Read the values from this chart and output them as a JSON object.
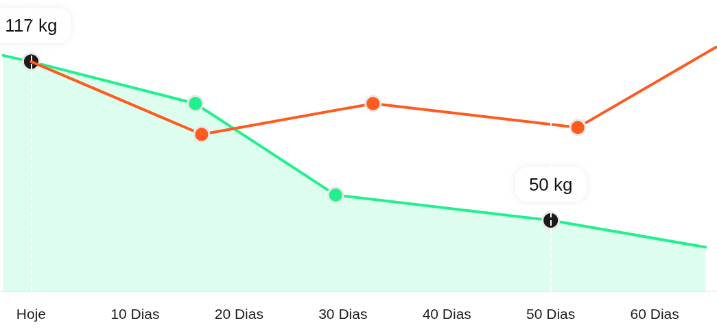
{
  "chart_data": {
    "type": "area",
    "series": [
      {
        "color": "#22f08e",
        "x": [
          -2.7,
          0,
          15.8,
          29.3,
          50,
          64.9
        ],
        "values": [
          119.6,
          117,
          99.3,
          60.7,
          50,
          38.7
        ],
        "value_labels": [
          null,
          "117 kg",
          null,
          null,
          "50 kg",
          null
        ]
      },
      {
        "type": "line",
        "color": "#ff5a1f",
        "x": [
          0,
          16.4,
          32.9,
          52.6,
          65.9
        ],
        "values": [
          117,
          86.3,
          99.3,
          89.2,
          123.1
        ]
      }
    ],
    "xlim": [
      -3,
      66
    ],
    "xticks": [
      {
        "value": 0,
        "label": "Hoje"
      },
      {
        "value": 10,
        "label": "10 Dias"
      },
      {
        "value": 20,
        "label": "20 Dias"
      },
      {
        "value": 30,
        "label": "30 Dias"
      },
      {
        "value": 40,
        "label": "40 Dias"
      },
      {
        "value": 50,
        "label": "50 Dias"
      },
      {
        "value": 60,
        "label": "60 Dias"
      }
    ],
    "ylim": [
      20,
      143
    ],
    "tick_labels": "x",
    "marker": "circle",
    "ref_lines": [
      {
        "axis": "x",
        "value": 0,
        "color": "#ffffff",
        "line_style": "dashed"
      },
      {
        "axis": "x",
        "value": 50,
        "color": "#ffffff",
        "line_style": "dashed"
      }
    ],
    "grid": false
  }
}
